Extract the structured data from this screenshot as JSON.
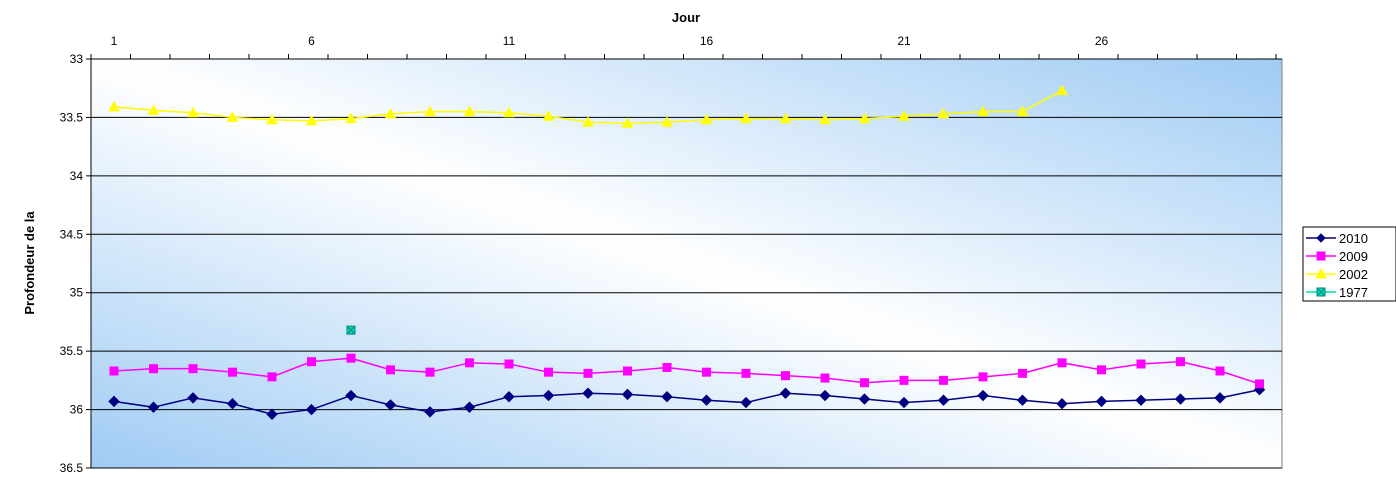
{
  "chart_data": {
    "type": "line",
    "xlabel": "Jour",
    "ylabel": "Profondeur de la",
    "x_axis_position": "top",
    "x": [
      1,
      2,
      3,
      4,
      5,
      6,
      7,
      8,
      9,
      10,
      11,
      12,
      13,
      14,
      15,
      16,
      17,
      18,
      19,
      20,
      21,
      22,
      23,
      24,
      25,
      26,
      27,
      28,
      29,
      30
    ],
    "xlim": [
      1,
      30
    ],
    "x_tick_labels": [
      "1",
      "6",
      "11",
      "16",
      "21",
      "26"
    ],
    "ylim": [
      33,
      36.5
    ],
    "y_inverted": true,
    "y_tick_labels": [
      "33",
      "33.5",
      "34",
      "34.5",
      "35",
      "35.5",
      "36",
      "36.5"
    ],
    "grid": "horizontal",
    "legend_position": "right",
    "series": [
      {
        "name": "2010",
        "color": "#000080",
        "marker": "diamond",
        "values": [
          35.93,
          35.98,
          35.9,
          35.95,
          36.04,
          36.0,
          35.88,
          35.96,
          36.02,
          35.98,
          35.89,
          35.88,
          35.86,
          35.87,
          35.89,
          35.92,
          35.94,
          35.86,
          35.88,
          35.91,
          35.94,
          35.92,
          35.88,
          35.92,
          35.95,
          35.93,
          35.92,
          35.91,
          35.9,
          35.83
        ]
      },
      {
        "name": "2009",
        "color": "#ff00ff",
        "marker": "square",
        "values": [
          35.67,
          35.65,
          35.65,
          35.68,
          35.72,
          35.59,
          35.56,
          35.66,
          35.68,
          35.6,
          35.61,
          35.68,
          35.69,
          35.67,
          35.64,
          35.68,
          35.69,
          35.71,
          35.73,
          35.77,
          35.75,
          35.75,
          35.72,
          35.69,
          35.6,
          35.66,
          35.61,
          35.59,
          35.67,
          35.78
        ]
      },
      {
        "name": "2002",
        "color": "#ffff00",
        "marker": "triangle",
        "values": [
          33.41,
          33.44,
          33.46,
          33.5,
          33.52,
          33.53,
          33.51,
          33.47,
          33.45,
          33.45,
          33.46,
          33.49,
          33.54,
          33.55,
          33.54,
          33.52,
          33.51,
          33.51,
          33.52,
          33.51,
          33.49,
          33.47,
          33.45,
          33.45,
          33.27,
          null,
          null,
          null,
          null,
          null
        ]
      },
      {
        "name": "1977",
        "color": "#00e0b0",
        "marker": "square-x",
        "values": [
          null,
          null,
          null,
          null,
          null,
          null,
          35.32,
          null,
          null,
          null,
          null,
          null,
          null,
          null,
          null,
          null,
          null,
          null,
          null,
          null,
          null,
          null,
          null,
          null,
          null,
          null,
          null,
          null,
          null,
          null
        ]
      }
    ]
  }
}
